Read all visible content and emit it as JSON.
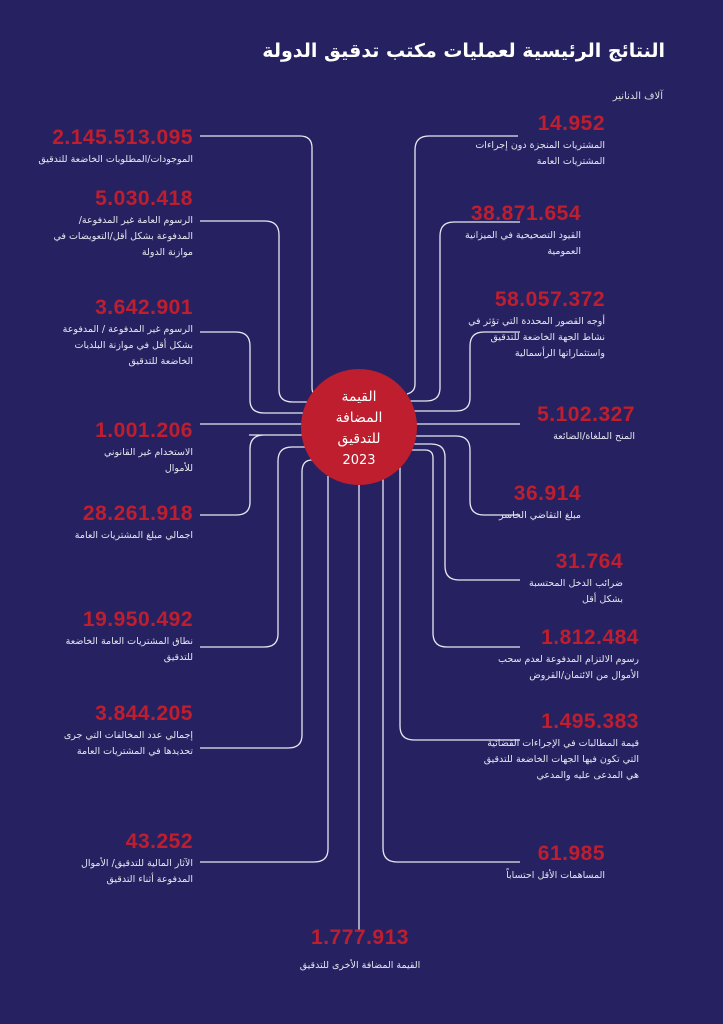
{
  "title": "النتائج الرئيسية لعمليات مكتب تدقيق الدولة",
  "unit": "آلاف الدنانير",
  "center": {
    "lines": [
      "القيمة",
      "المضافة",
      "للتدقيق"
    ],
    "year": "2023"
  },
  "left": [
    {
      "value": "2.145.513.095",
      "label": "الموجودات/المطلوبات الخاضعة للتدقيق"
    },
    {
      "value": "5.030.418",
      "label": "الرسوم العامة غير المدفوعة/المدفوعة بشكل أقل/التعويضات في موازنة الدولة"
    },
    {
      "value": "3.642.901",
      "label": "الرسوم غير المدفوعة / المدفوعة بشكل أقل في موازنة البلديات الخاضعة للتدقيق"
    },
    {
      "value": "1.001.206",
      "label": "الاستخدام غير القانوني للأموال"
    },
    {
      "value": "28.261.918",
      "label": "اجمالي مبلغ المشتريات العامة"
    },
    {
      "value": "19.950.492",
      "label": "نطاق المشتريات العامة الخاضعة للتدقيق"
    },
    {
      "value": "3.844.205",
      "label": "إجمالي عدد المخالفات التي جرى تحديدها في المشتريات العامة"
    },
    {
      "value": "43.252",
      "label": "الآثار المالية للتدقيق/ الأموال المدفوعة أثناء التدقيق"
    }
  ],
  "right": [
    {
      "value": "14.952",
      "label": "المشتريات المنجزة دون إجراءات المشتريات العامة"
    },
    {
      "value": "38.871.654",
      "label": "القيود التصحيحية في الميزانية العمومية"
    },
    {
      "value": "58.057.372",
      "label": "أوجه القصور المحددة التي تؤثر في نشاط الجهة الخاضعة للتدقيق واستثماراتها الرأسمالية"
    },
    {
      "value": "5.102.327",
      "label": "المنح الملغاة/الضائعة"
    },
    {
      "value": "36.914",
      "label": "مبلغ التقاضي الخاسر"
    },
    {
      "value": "31.764",
      "label": "ضرائب الدخل المحتسبة بشكل أقل"
    },
    {
      "value": "1.812.484",
      "label": "رسوم الالتزام المدفوعة لعدم سحب الأموال من الائتمان/القروض"
    },
    {
      "value": "1.495.383",
      "label": "قيمة المطالبات في الإجراءات القضائية التي تكون فيها الجهات الخاضعة للتدقيق هي المدعى عليه والمدعي"
    },
    {
      "value": "61.985",
      "label": "المساهمات الأقل احتساباً"
    }
  ],
  "bottom": {
    "value": "1.777.913",
    "label": "القيمة المضافة الأخرى للتدقيق"
  },
  "colors": {
    "background": "#262262",
    "accent": "#be1e2d"
  }
}
